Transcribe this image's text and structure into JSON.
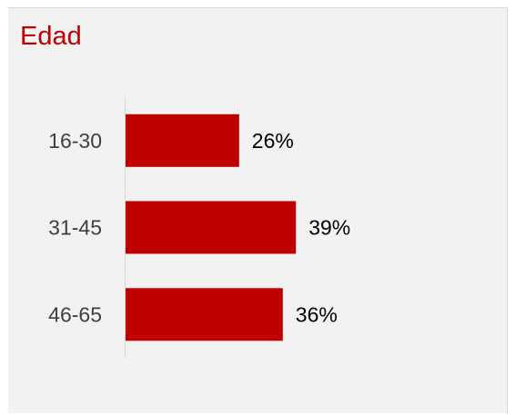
{
  "chart_data": {
    "type": "bar",
    "orientation": "horizontal",
    "title": "Edad",
    "categories": [
      "16-30",
      "31-45",
      "46-65"
    ],
    "values": [
      26,
      39,
      36
    ],
    "value_labels": [
      "26%",
      "39%",
      "36%"
    ],
    "xlim": [
      0,
      50
    ],
    "grid": false,
    "legend": "none",
    "bar_color": "#c00000",
    "title_color": "#c00000"
  }
}
